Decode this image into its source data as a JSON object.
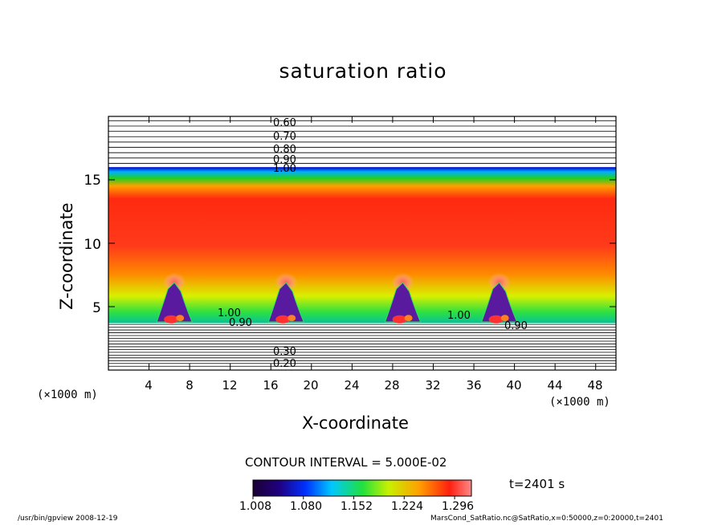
{
  "chart_data": {
    "type": "heatmap",
    "title": "saturation ratio",
    "xlabel": "X-coordinate",
    "ylabel": "Z-coordinate",
    "x_unit": "(×1000 m)",
    "y_unit": "(×1000 m)",
    "xlim": [
      0,
      50
    ],
    "ylim": [
      0,
      20
    ],
    "x_ticks": [
      "4",
      "8",
      "12",
      "16",
      "20",
      "24",
      "28",
      "32",
      "36",
      "40",
      "44",
      "48"
    ],
    "y_ticks": [
      "5",
      "10",
      "15"
    ],
    "contour_labels_upper": [
      "0.60",
      "0.70",
      "0.80",
      "0.90",
      "1.00"
    ],
    "contour_labels_lower": [
      "0.30",
      "0.20"
    ],
    "contour_labels_mid": [
      "1.00",
      "0.90",
      "1.00",
      "0.90"
    ],
    "contour_interval": "CONTOUR INTERVAL = 5.000E-02",
    "colorbar": {
      "ticks": [
        "1.008",
        "1.080",
        "1.152",
        "1.224",
        "1.296"
      ],
      "min": 1.008,
      "max": 1.32
    },
    "cloud_peaks_x": [
      6.5,
      17.5,
      29,
      38.5
    ],
    "time": "t=2401 s",
    "grid": false
  },
  "footer": {
    "left": "/usr/bin/gpview  2008-12-19",
    "right": "MarsCond_SatRatio.nc@SatRatio,x=0:50000,z=0:20000,t=2401"
  }
}
